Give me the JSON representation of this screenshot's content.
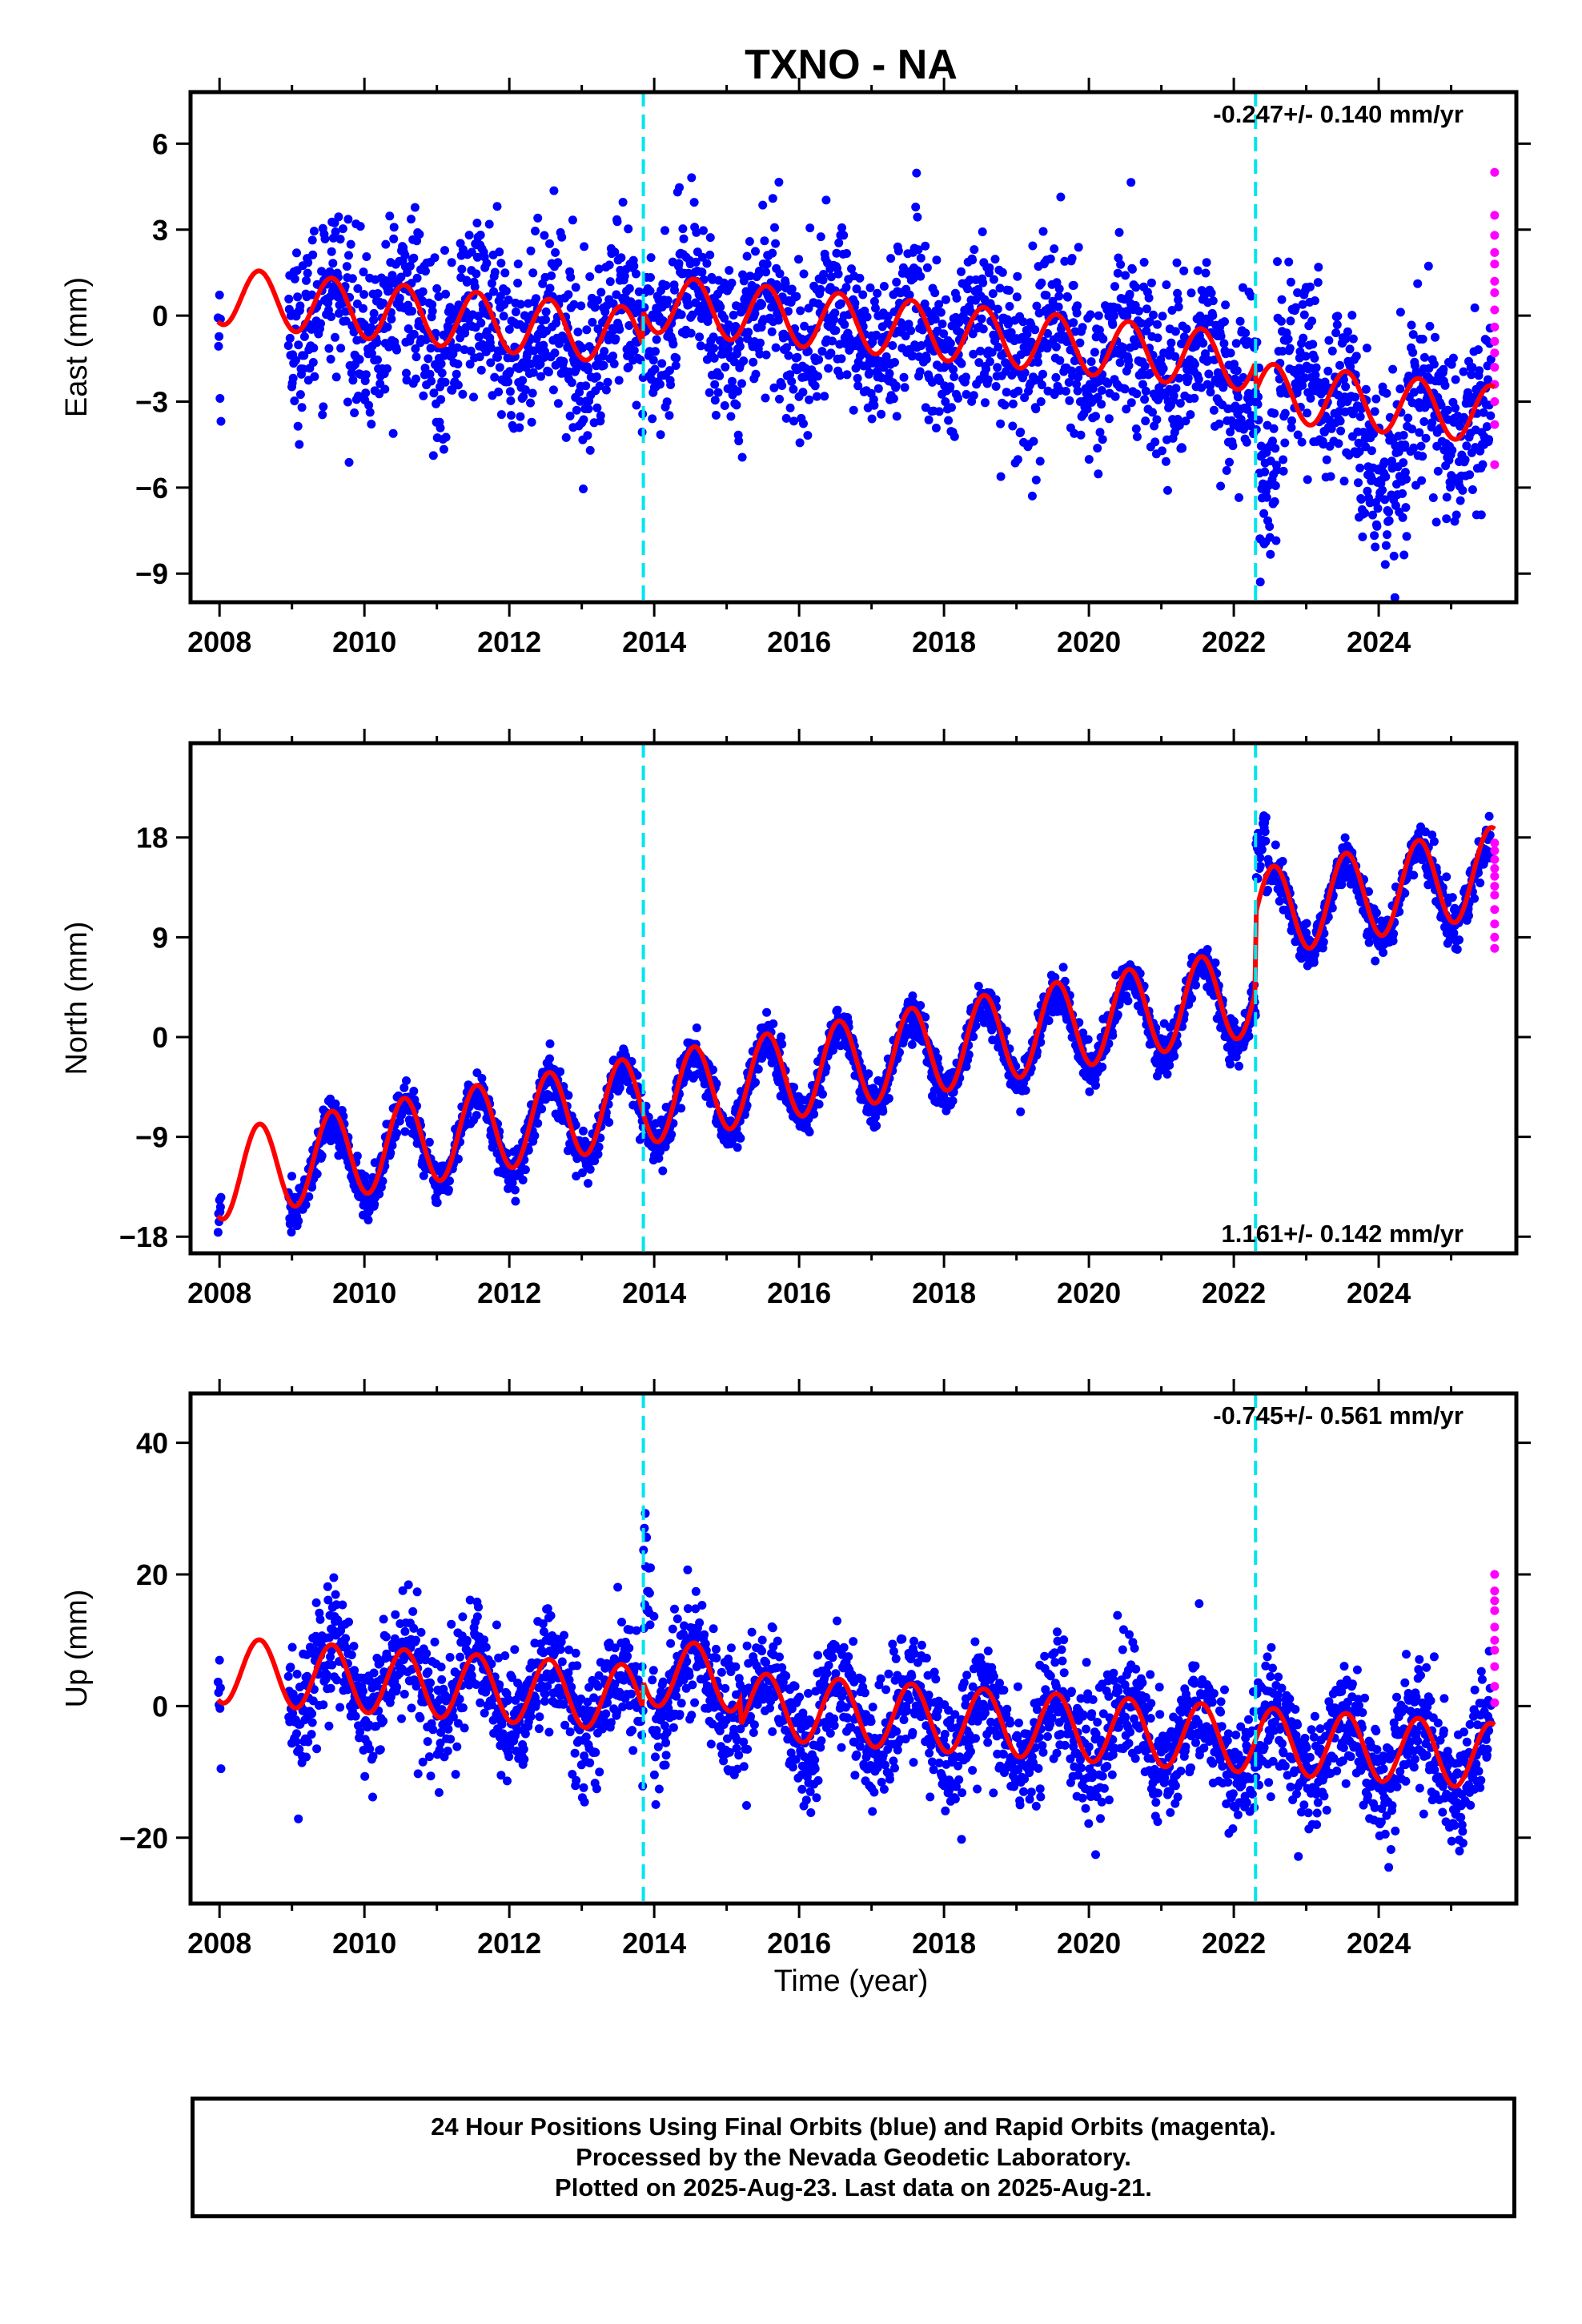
{
  "title": "TXNO - NA",
  "xlabel": "Time (year)",
  "colors": {
    "final_orbits": "#0000ff",
    "rapid_orbits": "#ff00ff",
    "model": "#ff0000",
    "events": "#00e5ee"
  },
  "footer": {
    "line1": "24 Hour Positions Using Final Orbits (blue) and Rapid Orbits (magenta).",
    "line2": "Processed by the Nevada Geodetic Laboratory.",
    "line3": "Plotted on 2025-Aug-23. Last data on 2025-Aug-21."
  },
  "chart_data": [
    {
      "type": "scatter",
      "component": "east",
      "ylabel": "East (mm)",
      "rate_text": "-0.247+/- 0.140 mm/yr",
      "rate_placement": "top-right",
      "xlim": [
        2007.6,
        2025.9
      ],
      "ylim": [
        -10.0,
        7.8
      ],
      "xticks": [
        2008,
        2010,
        2012,
        2014,
        2016,
        2018,
        2020,
        2022,
        2024
      ],
      "xtick_labels": [
        "2008",
        "2010",
        "2012",
        "2014",
        "2016",
        "2018",
        "2020",
        "2022",
        "2024"
      ],
      "yticks": [
        -9,
        -6,
        -3,
        0,
        3,
        6
      ],
      "ytick_labels": [
        "−9",
        "−6",
        "−3",
        "0",
        "3",
        "6"
      ],
      "event_lines": [
        2013.85,
        2022.3
      ],
      "series": [
        {
          "kind": "final",
          "rate": -0.247,
          "offset": 0.5,
          "annual_amp": 1.0,
          "noise": 1.5,
          "segments": [
            [
              2007.98,
              2008.02
            ],
            [
              2008.95,
              2025.55
            ]
          ],
          "steps": [
            [
              2013.85,
              1.2
            ],
            [
              2022.3,
              -1.0
            ]
          ],
          "excursions": [
            [
              2022.35,
              2022.6,
              -4.5
            ],
            [
              2022.75,
              2023.2,
              2.5
            ],
            [
              2023.7,
              2024.4,
              -2.0
            ]
          ]
        },
        {
          "kind": "rapid",
          "x": 2025.6,
          "y": [
            5.0,
            3.5,
            2.8,
            2.2,
            1.8,
            1.2,
            0.8,
            0.2,
            -0.4,
            -0.9,
            -1.3,
            -1.8,
            -2.4,
            -3.0,
            -3.8,
            -5.2
          ]
        },
        {
          "kind": "model",
          "rate": -0.247,
          "offset": 0.7,
          "annual_amp": 1.0,
          "start": 2007.98,
          "end": 2025.6,
          "steps": [
            [
              2013.85,
              1.2
            ],
            [
              2022.3,
              -1.0
            ]
          ]
        }
      ]
    },
    {
      "type": "scatter",
      "component": "north",
      "ylabel": "North (mm)",
      "rate_text": "1.161+/- 0.142 mm/yr",
      "rate_placement": "bottom-right",
      "xlim": [
        2007.6,
        2025.9
      ],
      "ylim": [
        -19.5,
        26.5
      ],
      "xticks": [
        2008,
        2010,
        2012,
        2014,
        2016,
        2018,
        2020,
        2022,
        2024
      ],
      "xtick_labels": [
        "2008",
        "2010",
        "2012",
        "2014",
        "2016",
        "2018",
        "2020",
        "2022",
        "2024"
      ],
      "yticks": [
        -18,
        -9,
        0,
        9,
        18
      ],
      "ytick_labels": [
        "−18",
        "−9",
        "0",
        "9",
        "18"
      ],
      "event_lines": [
        2013.85,
        2022.3
      ],
      "series": [
        {
          "kind": "final",
          "rate": 1.161,
          "offset": -13.0,
          "annual_amp": 3.8,
          "noise": 1.0,
          "segments": [
            [
              2007.98,
              2008.02
            ],
            [
              2008.95,
              2025.55
            ]
          ],
          "steps": [
            [
              2013.85,
              0.0
            ],
            [
              2022.3,
              7.0
            ]
          ],
          "excursions": [
            [
              2022.3,
              2022.45,
              6.0
            ]
          ]
        },
        {
          "kind": "rapid",
          "x": 2025.6,
          "y": [
            17.5,
            16.8,
            16.0,
            15.2,
            14.5,
            13.6,
            12.8,
            11.5,
            10.2,
            9.0,
            8.0
          ]
        },
        {
          "kind": "model",
          "rate": 1.161,
          "offset": -12.5,
          "annual_amp": 4.0,
          "start": 2007.98,
          "end": 2025.6,
          "steps": [
            [
              2013.85,
              0.0
            ],
            [
              2022.3,
              7.0
            ]
          ]
        }
      ]
    },
    {
      "type": "scatter",
      "component": "up",
      "ylabel": "Up (mm)",
      "rate_text": "-0.745+/- 0.561 mm/yr",
      "rate_placement": "top-right",
      "xlim": [
        2007.6,
        2025.9
      ],
      "ylim": [
        -30.0,
        47.5
      ],
      "xticks": [
        2008,
        2010,
        2012,
        2014,
        2016,
        2018,
        2020,
        2022,
        2024
      ],
      "xtick_labels": [
        "2008",
        "2010",
        "2012",
        "2014",
        "2016",
        "2018",
        "2020",
        "2022",
        "2024"
      ],
      "yticks": [
        -20,
        0,
        20,
        40
      ],
      "ytick_labels": [
        "−20",
        "0",
        "20",
        "40"
      ],
      "event_lines": [
        2013.85,
        2022.3
      ],
      "series": [
        {
          "kind": "final",
          "rate": -0.745,
          "offset": 5.0,
          "annual_amp": 5.5,
          "noise": 4.5,
          "segments": [
            [
              2007.98,
              2008.02
            ],
            [
              2008.95,
              2025.55
            ]
          ],
          "steps": [
            [
              2013.85,
              4.0
            ],
            [
              2015.2,
              -4.0
            ],
            [
              2022.3,
              0.0
            ]
          ],
          "excursions": [
            [
              2013.85,
              2013.95,
              25.0
            ]
          ]
        },
        {
          "kind": "rapid",
          "x": 2025.6,
          "y": [
            20.0,
            17.5,
            16.0,
            14.5,
            12.0,
            10.0,
            8.5,
            6.0,
            3.0,
            0.5
          ]
        },
        {
          "kind": "model",
          "rate": -0.745,
          "offset": 5.5,
          "annual_amp": 5.0,
          "start": 2007.98,
          "end": 2025.6,
          "steps": [
            [
              2013.85,
              4.0
            ],
            [
              2015.2,
              -4.0
            ],
            [
              2022.3,
              0.0
            ]
          ]
        }
      ]
    }
  ]
}
